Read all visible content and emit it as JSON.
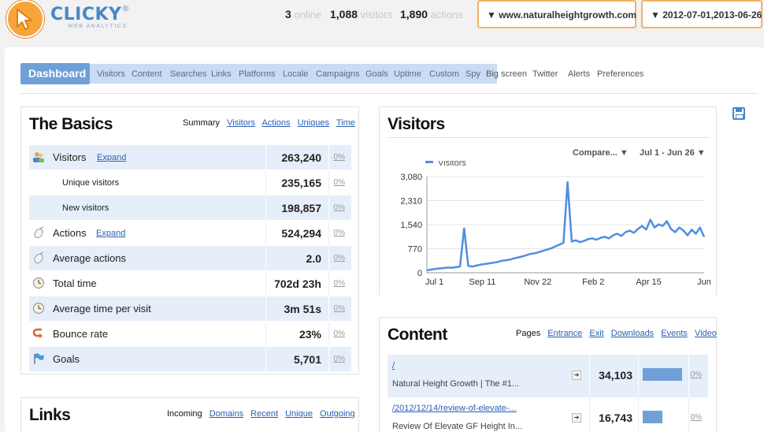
{
  "header": {
    "brand": "CLICKY",
    "brand_reg": "®",
    "brand_sub": "WEB ANALYTICS",
    "online_count": "3",
    "online_label": "online",
    "visitors_count": "1,088",
    "visitors_label": "visitors",
    "actions_count": "1,890",
    "actions_label": "actions",
    "site_selector": "▼ www.naturalheightgrowth.com",
    "date_selector": "▼ 2012-07-01,2013-06-26"
  },
  "nav": {
    "active": "Dashboard",
    "items": [
      "Visitors",
      "Content",
      "Searches",
      "Links",
      "Platforms",
      "Locale",
      "Campaigns",
      "Goals",
      "Uptime",
      "Custom",
      "Spy",
      "Big screen",
      "Twitter",
      "Alerts",
      "Preferences"
    ]
  },
  "basics": {
    "title": "The Basics",
    "tabs": {
      "current": "Summary",
      "links": [
        "Visitors",
        "Actions",
        "Uniques",
        "Time"
      ]
    },
    "expand_label": "Expand",
    "rows": [
      {
        "label": "Visitors",
        "value": "263,240",
        "pct": "0%",
        "icon": "users-icon"
      },
      {
        "label": "Unique visitors",
        "value": "235,165",
        "pct": "0%"
      },
      {
        "label": "New visitors",
        "value": "198,857",
        "pct": "0%"
      },
      {
        "label": "Actions",
        "value": "524,294",
        "pct": "0%",
        "icon": "mouse-icon"
      },
      {
        "label": "Average actions",
        "value": "2.0",
        "pct": "0%",
        "icon": "mouse-icon"
      },
      {
        "label": "Total time",
        "value": "702d 23h",
        "pct": "0%",
        "icon": "clock-icon"
      },
      {
        "label": "Average time per visit",
        "value": "3m 51s",
        "pct": "0%",
        "icon": "clock-icon"
      },
      {
        "label": "Bounce rate",
        "value": "23%",
        "pct": "0%",
        "icon": "bounce-icon"
      },
      {
        "label": "Goals",
        "value": "5,701",
        "pct": "0%",
        "icon": "flag-icon"
      }
    ]
  },
  "links": {
    "title": "Links",
    "tabs": {
      "current": "Incoming",
      "links": [
        "Domains",
        "Recent",
        "Unique",
        "Outgoing"
      ]
    }
  },
  "visitors_chart": {
    "title": "Visitors",
    "compare_label": "Compare... ▼",
    "range_label": "Jul 1 - Jun 26 ▼"
  },
  "chart_data": {
    "type": "line",
    "series": [
      {
        "name": "Visitors",
        "values": [
          80,
          100,
          120,
          140,
          150,
          170,
          160,
          180,
          200,
          1420,
          220,
          200,
          230,
          260,
          280,
          300,
          320,
          340,
          380,
          400,
          420,
          460,
          490,
          520,
          560,
          600,
          620,
          660,
          700,
          740,
          780,
          840,
          900,
          960,
          2900,
          1000,
          1040,
          980,
          1020,
          1080,
          1100,
          1060,
          1120,
          1150,
          1100,
          1200,
          1250,
          1180,
          1300,
          1350,
          1280,
          1400,
          1500,
          1380,
          1700,
          1450,
          1550,
          1500,
          1650,
          1400,
          1300,
          1450,
          1350,
          1200,
          1380,
          1250,
          1450,
          1150
        ]
      }
    ],
    "x_ticks": [
      "Jul 1",
      "Sep 11",
      "Nov 22",
      "Feb 2",
      "Apr 15",
      "Jun"
    ],
    "y_ticks": [
      "0",
      "770",
      "1,540",
      "2,310",
      "3,080"
    ],
    "ylim": [
      0,
      3080
    ],
    "grid": true,
    "legend": "top-left"
  },
  "content": {
    "title": "Content",
    "tabs": {
      "current": "Pages",
      "links": [
        "Entrance",
        "Exit",
        "Downloads",
        "Events",
        "Video"
      ]
    },
    "rows": [
      {
        "path": "/",
        "title": "Natural Height Growth | The #1...",
        "value": "34,103",
        "pct": "0%",
        "share": 1.0
      },
      {
        "path": "/2012/12/14/review-of-elevate-...",
        "title": "Review Of Elevate GF Height In...",
        "value": "16,743",
        "pct": "0%",
        "share": 0.49
      }
    ]
  }
}
